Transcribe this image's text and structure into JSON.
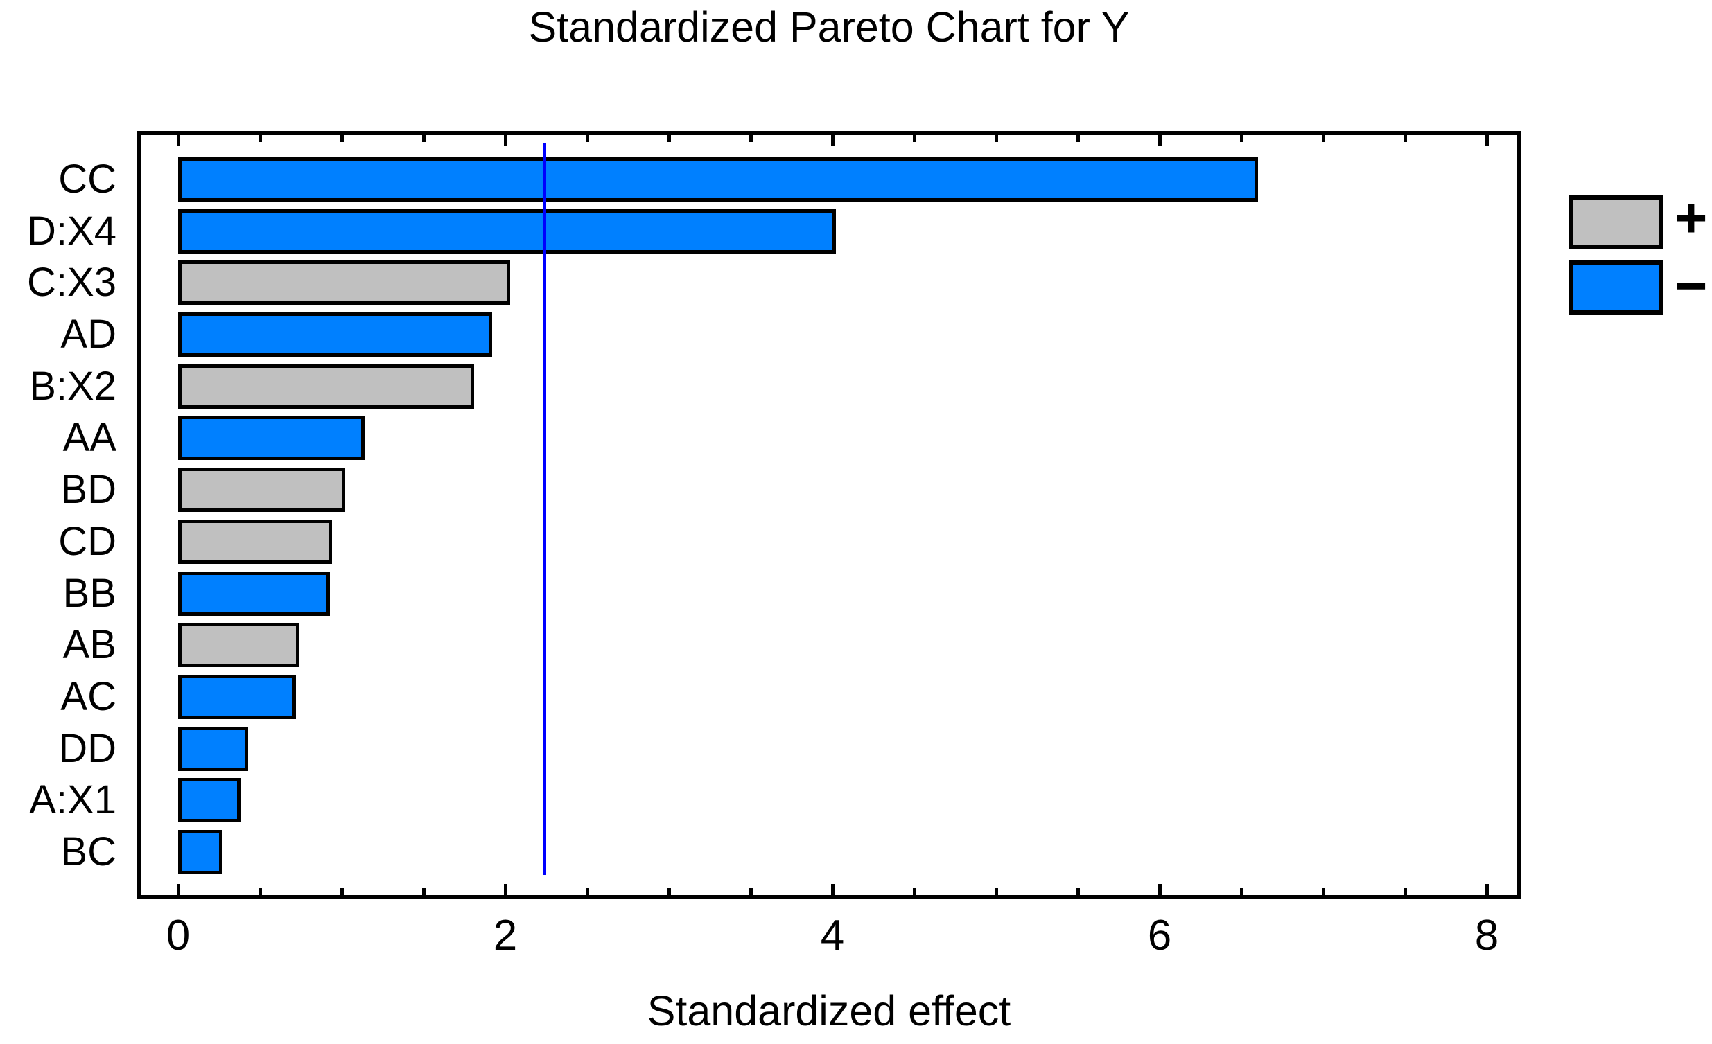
{
  "chart_data": {
    "type": "bar",
    "orientation": "horizontal",
    "title": "Standardized Pareto Chart for Y",
    "xlabel": "Standardized effect",
    "ylabel": "",
    "xlim": [
      0,
      8.19
    ],
    "xticks": [
      0,
      2,
      4,
      6,
      8
    ],
    "minor_tick_step": 0.5,
    "grid": false,
    "reference_line": 2.24,
    "categories": [
      "CC",
      "D:X4",
      "C:X3",
      "AD",
      "B:X2",
      "AA",
      "BD",
      "CD",
      "BB",
      "AB",
      "AC",
      "DD",
      "A:X1",
      "BC"
    ],
    "values": [
      6.6,
      4.02,
      2.03,
      1.92,
      1.81,
      1.14,
      1.02,
      0.94,
      0.93,
      0.74,
      0.72,
      0.43,
      0.38,
      0.27
    ],
    "signs": [
      "-",
      "-",
      "+",
      "-",
      "+",
      "-",
      "+",
      "+",
      "-",
      "+",
      "-",
      "-",
      "-",
      "-"
    ],
    "legend": [
      {
        "label": "+",
        "color": "#C0C0C0"
      },
      {
        "label": "−",
        "color": "#0080FF"
      }
    ],
    "legend_position": "right",
    "colors": {
      "positive": "#C0C0C0",
      "negative": "#0080FF",
      "bar_border": "#000000",
      "reference_line": "#0000FF",
      "axis": "#000000",
      "background": "#FFFFFF"
    }
  }
}
